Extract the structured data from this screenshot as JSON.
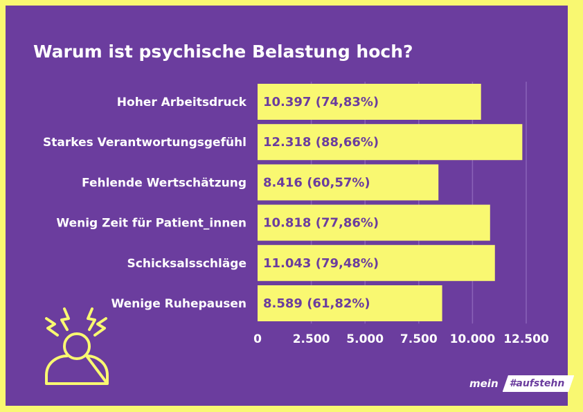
{
  "title": "Warum ist psychische Belastung hoch?",
  "chart_data": {
    "type": "bar",
    "orientation": "horizontal",
    "categories": [
      "Hoher Arbeitsdruck",
      "Starkes Verantwortungsgefühl",
      "Fehlende Wertschätzung",
      "Wenig Zeit für Patient_innen",
      "Schicksalsschläge",
      "Wenige Ruhepausen"
    ],
    "values": [
      10397,
      12318,
      8416,
      10818,
      11043,
      8589
    ],
    "data_labels": [
      "10.397 (74,83%)",
      "12.318 (88,66%)",
      "8.416 (60,57%)",
      "10.818 (77,86%)",
      "11.043 (79,48%)",
      "8.589 (61,82%)"
    ],
    "xlim": [
      0,
      12500
    ],
    "ticks": [
      0,
      2500,
      5000,
      7500,
      10000,
      12500
    ],
    "tick_labels": [
      "0",
      "2.500",
      "5.000",
      "7.500",
      "10.000",
      "12.500"
    ],
    "grid": true,
    "colors": {
      "bar": "#f9f871",
      "background": "#6b3d9e",
      "text": "#ffffff"
    }
  },
  "logo": {
    "prefix": "mein",
    "tag": "#aufstehn"
  },
  "icon": "stressed-person-icon"
}
